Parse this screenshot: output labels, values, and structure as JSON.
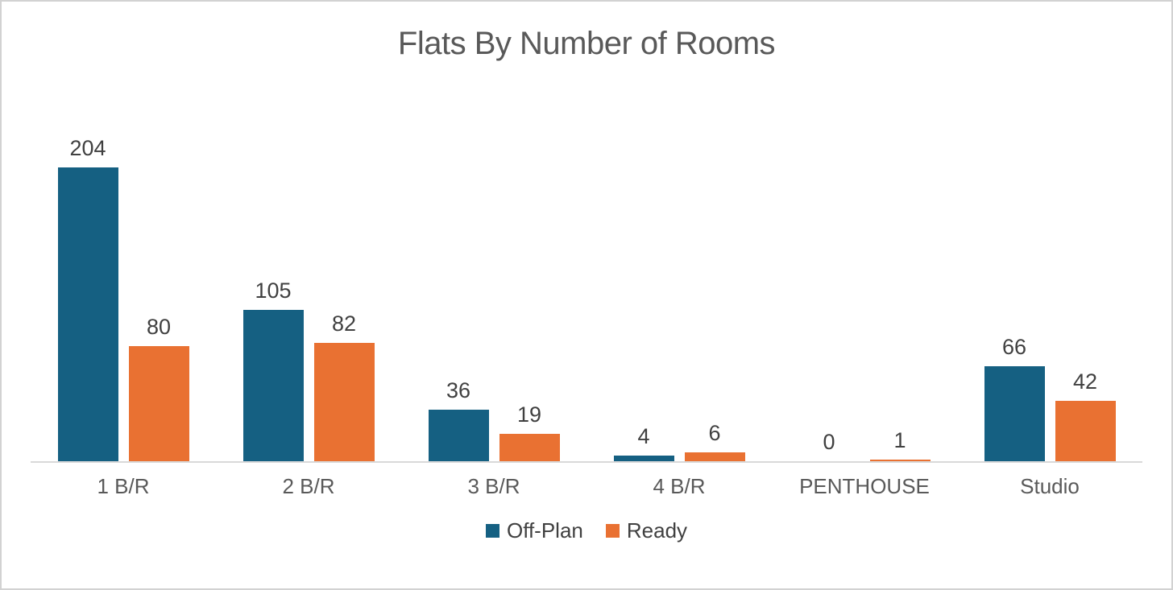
{
  "chart_data": {
    "type": "bar",
    "title": "Flats By Number of Rooms",
    "categories": [
      "1 B/R",
      "2 B/R",
      "3 B/R",
      "4 B/R",
      "PENTHOUSE",
      "Studio"
    ],
    "series": [
      {
        "name": "Off-Plan",
        "color": "#156082",
        "values": [
          204,
          105,
          36,
          4,
          0,
          66
        ]
      },
      {
        "name": "Ready",
        "color": "#E97132",
        "values": [
          80,
          82,
          19,
          6,
          1,
          42
        ]
      }
    ],
    "data_labels": [
      [
        "204",
        "80"
      ],
      [
        "105",
        "82"
      ],
      [
        "36",
        "19"
      ],
      [
        "4",
        "6"
      ],
      [
        "0",
        "1"
      ],
      [
        "66",
        "42"
      ]
    ],
    "legend": {
      "position": "bottom",
      "entries": [
        "Off-Plan",
        "Ready"
      ]
    },
    "grid": false,
    "y_axis_visible": false,
    "ylim": [
      0,
      204
    ],
    "axis_line_color": "#D9D9D9",
    "title_color": "#595959",
    "label_color": "#404040",
    "category_label_color": "#595959"
  }
}
